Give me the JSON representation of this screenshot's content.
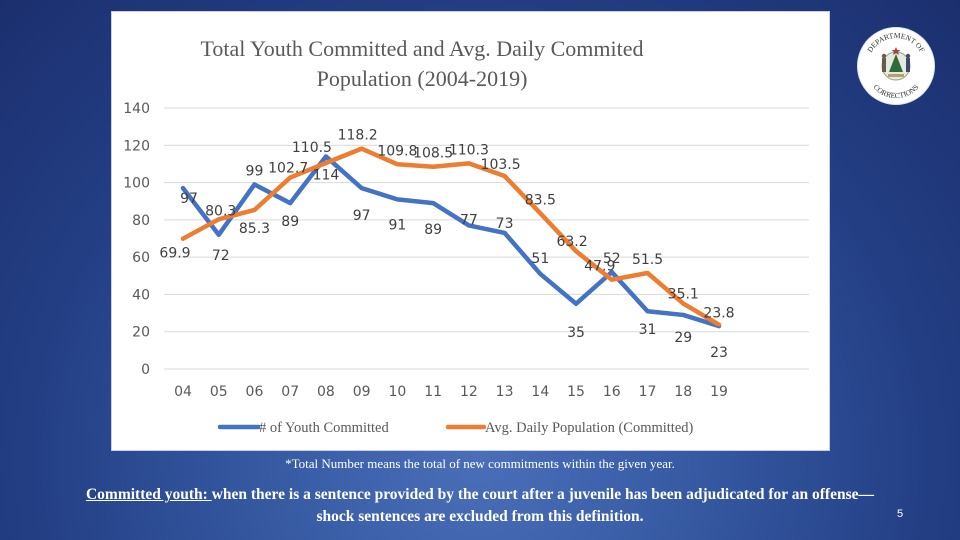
{
  "slide": {
    "footnote": "*Total Number means the total of new commitments within the given year.",
    "definition_term": "Committed youth: ",
    "definition_text_line1": " when there is a sentence provided by the court after a juvenile has been adjudicated for an offense—",
    "definition_text_line2": "shock sentences are excluded from this definition.",
    "page_number": "5",
    "logo": {
      "top_text": "DEPARTMENT OF",
      "bottom_text": "CORRECTIONS",
      "icon": "maine-state-seal-icon"
    }
  },
  "colors": {
    "series_blue": "#4472c4",
    "series_orange": "#ed7d31",
    "gridline": "#d9d9d9",
    "text": "#595959",
    "data_label": "#404040"
  },
  "chart_data": {
    "type": "line",
    "title_line1": "Total Youth Committed and Avg. Daily Commited",
    "title_line2": "Population (2004-2019)",
    "xlabel": "",
    "ylabel": "",
    "categories": [
      "04",
      "05",
      "06",
      "07",
      "08",
      "09",
      "10",
      "11",
      "12",
      "13",
      "14",
      "15",
      "16",
      "17",
      "18",
      "19"
    ],
    "ylim": [
      0,
      140
    ],
    "yticks": [
      0,
      20,
      40,
      60,
      80,
      100,
      120,
      140
    ],
    "grid": true,
    "legend_position": "bottom",
    "series": [
      {
        "name": "# of Youth Committed",
        "color": "#4472c4",
        "values": [
          97,
          72,
          99,
          89,
          114,
          97,
          91,
          89,
          77,
          73,
          51,
          35,
          52,
          31,
          29,
          23
        ]
      },
      {
        "name": "Avg. Daily Population (Committed)",
        "color": "#ed7d31",
        "values": [
          69.9,
          80.3,
          85.3,
          102.7,
          110.5,
          118.2,
          109.8,
          108.5,
          110.3,
          103.5,
          83.5,
          63.2,
          47.9,
          51.5,
          35.1,
          23.8
        ]
      }
    ]
  }
}
